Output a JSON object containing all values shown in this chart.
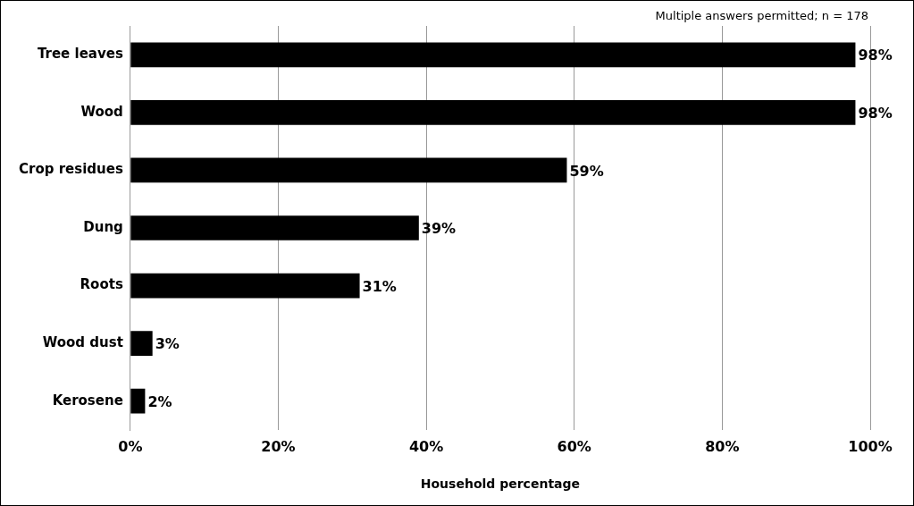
{
  "chart_data": {
    "type": "bar",
    "orientation": "horizontal",
    "xlabel": "Household percentage",
    "annotations": [
      "Multiple answers permitted; n = 178"
    ],
    "categories": [
      "Tree leaves",
      "Wood",
      "Crop residues",
      "Dung",
      "Roots",
      "Wood dust",
      "Kerosene"
    ],
    "values": [
      98,
      98,
      59,
      39,
      31,
      3,
      2
    ],
    "value_labels": [
      "98%",
      "98%",
      "59%",
      "39%",
      "31%",
      "3%",
      "2%"
    ],
    "color": "#000000",
    "xlim": [
      0,
      100
    ],
    "xticks": [
      {
        "value": 0,
        "label": "0%"
      },
      {
        "value": 20,
        "label": "20%"
      },
      {
        "value": 40,
        "label": "40%"
      },
      {
        "value": 60,
        "label": "60%"
      },
      {
        "value": 80,
        "label": "80%"
      },
      {
        "value": 100,
        "label": "100%"
      }
    ],
    "grid": "x",
    "legend": false
  }
}
